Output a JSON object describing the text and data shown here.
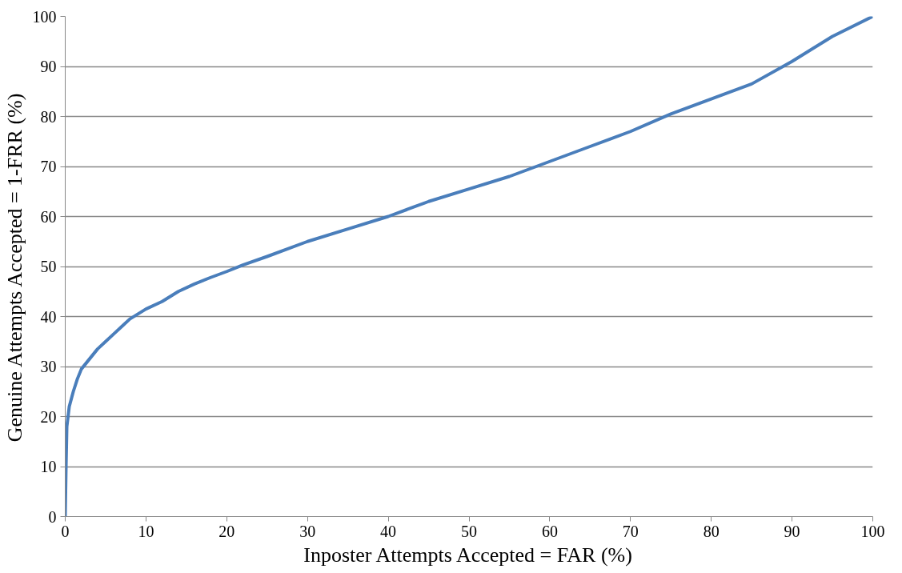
{
  "chart_data": {
    "type": "line",
    "xlabel": "Inposter Attempts Accepted = FAR (%)",
    "ylabel": "Genuine Attempts Accepted = 1-FRR (%)",
    "xlim": [
      0,
      100
    ],
    "ylim": [
      0,
      100
    ],
    "xticks": [
      0,
      10,
      20,
      30,
      40,
      50,
      60,
      70,
      80,
      90,
      100
    ],
    "yticks": [
      0,
      10,
      20,
      30,
      40,
      50,
      60,
      70,
      80,
      90,
      100
    ],
    "grid": "y",
    "marker": "none",
    "line_style": "solid",
    "series": [
      {
        "color": "#4a7ebb",
        "x": [
          0,
          0.1,
          0.2,
          0.5,
          1,
          1.5,
          2,
          3,
          4,
          5,
          6,
          7,
          8,
          10,
          12,
          14,
          16,
          18,
          20,
          22,
          25,
          30,
          35,
          40,
          45,
          50,
          55,
          60,
          65,
          70,
          75,
          80,
          85,
          90,
          95,
          100
        ],
        "values": [
          0,
          10,
          18,
          22,
          25,
          27.5,
          29.5,
          31.5,
          33.5,
          35,
          36.5,
          38,
          39.5,
          41.5,
          43,
          45,
          46.5,
          47.8,
          49,
          50.3,
          52,
          55,
          57.5,
          60,
          63,
          65.5,
          68,
          71,
          74,
          77,
          80.5,
          83.5,
          86.5,
          91,
          96,
          100
        ]
      }
    ]
  }
}
